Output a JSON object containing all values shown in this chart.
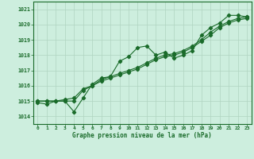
{
  "xlabel": "Graphe pression niveau de la mer (hPa)",
  "bg_color": "#cdeede",
  "grid_color": "#b0d4c0",
  "line_color": "#1a6b2a",
  "x_ticks": [
    0,
    1,
    2,
    3,
    4,
    5,
    6,
    7,
    8,
    9,
    10,
    11,
    12,
    13,
    14,
    15,
    16,
    17,
    18,
    19,
    20,
    21,
    22,
    23
  ],
  "ylim": [
    1013.5,
    1021.5
  ],
  "xlim": [
    -0.5,
    23.5
  ],
  "yticks": [
    1014,
    1015,
    1016,
    1017,
    1018,
    1019,
    1020,
    1021
  ],
  "series1": [
    1014.9,
    1014.8,
    1015.0,
    1015.0,
    1014.3,
    1015.2,
    1016.1,
    1016.5,
    1016.6,
    1017.6,
    1017.9,
    1018.5,
    1018.6,
    1018.0,
    1018.2,
    1017.8,
    1018.0,
    1018.3,
    1019.3,
    1019.8,
    1020.1,
    1020.6,
    1020.6,
    1020.5
  ],
  "series2": [
    1015.0,
    1015.0,
    1015.0,
    1015.1,
    1015.2,
    1015.8,
    1016.0,
    1016.4,
    1016.6,
    1016.8,
    1017.0,
    1017.2,
    1017.5,
    1017.8,
    1018.0,
    1018.1,
    1018.3,
    1018.6,
    1019.0,
    1019.5,
    1019.9,
    1020.2,
    1020.4,
    1020.5
  ],
  "series3": [
    1015.0,
    1015.0,
    1015.0,
    1015.0,
    1015.0,
    1015.7,
    1016.0,
    1016.3,
    1016.5,
    1016.7,
    1016.9,
    1017.1,
    1017.4,
    1017.7,
    1017.9,
    1018.0,
    1018.2,
    1018.5,
    1018.9,
    1019.3,
    1019.8,
    1020.1,
    1020.3,
    1020.4
  ]
}
